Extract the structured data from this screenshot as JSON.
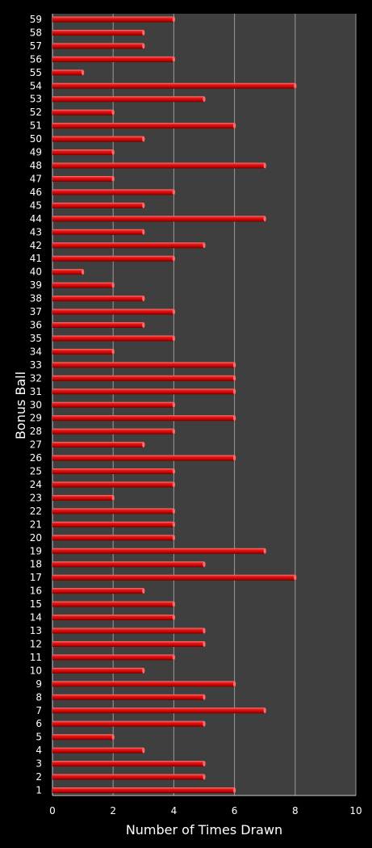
{
  "chart_data": {
    "type": "bar",
    "orientation": "horizontal",
    "title": "",
    "xlabel": "Number of Times Drawn",
    "ylabel": "Bonus Ball",
    "xlim": [
      0,
      10
    ],
    "xticks": [
      0,
      2,
      4,
      6,
      8,
      10
    ],
    "grid": true,
    "legend": "none",
    "categories": [
      "1",
      "2",
      "3",
      "4",
      "5",
      "6",
      "7",
      "8",
      "9",
      "10",
      "11",
      "12",
      "13",
      "14",
      "15",
      "16",
      "17",
      "18",
      "19",
      "20",
      "21",
      "22",
      "23",
      "24",
      "25",
      "26",
      "27",
      "28",
      "29",
      "30",
      "31",
      "32",
      "33",
      "34",
      "35",
      "36",
      "37",
      "38",
      "39",
      "40",
      "41",
      "42",
      "43",
      "44",
      "45",
      "46",
      "47",
      "48",
      "49",
      "50",
      "51",
      "52",
      "53",
      "54",
      "55",
      "56",
      "57",
      "58",
      "59"
    ],
    "values": [
      6,
      5,
      5,
      3,
      2,
      5,
      7,
      5,
      6,
      3,
      4,
      5,
      5,
      4,
      4,
      3,
      8,
      5,
      7,
      4,
      4,
      4,
      2,
      4,
      4,
      6,
      3,
      4,
      6,
      4,
      6,
      6,
      6,
      2,
      4,
      3,
      4,
      3,
      2,
      1,
      4,
      5,
      3,
      7,
      3,
      4,
      2,
      7,
      2,
      3,
      6,
      2,
      5,
      8,
      1,
      4,
      3,
      3,
      4
    ],
    "colors": {
      "background": "#000000",
      "plot_area": "#3f3f3f",
      "grid": "#9a9a9a",
      "bar": "#dd1111",
      "bar_dark": "#7a0000",
      "bar_light": "#ff6a6a",
      "text": "#ffffff"
    }
  }
}
